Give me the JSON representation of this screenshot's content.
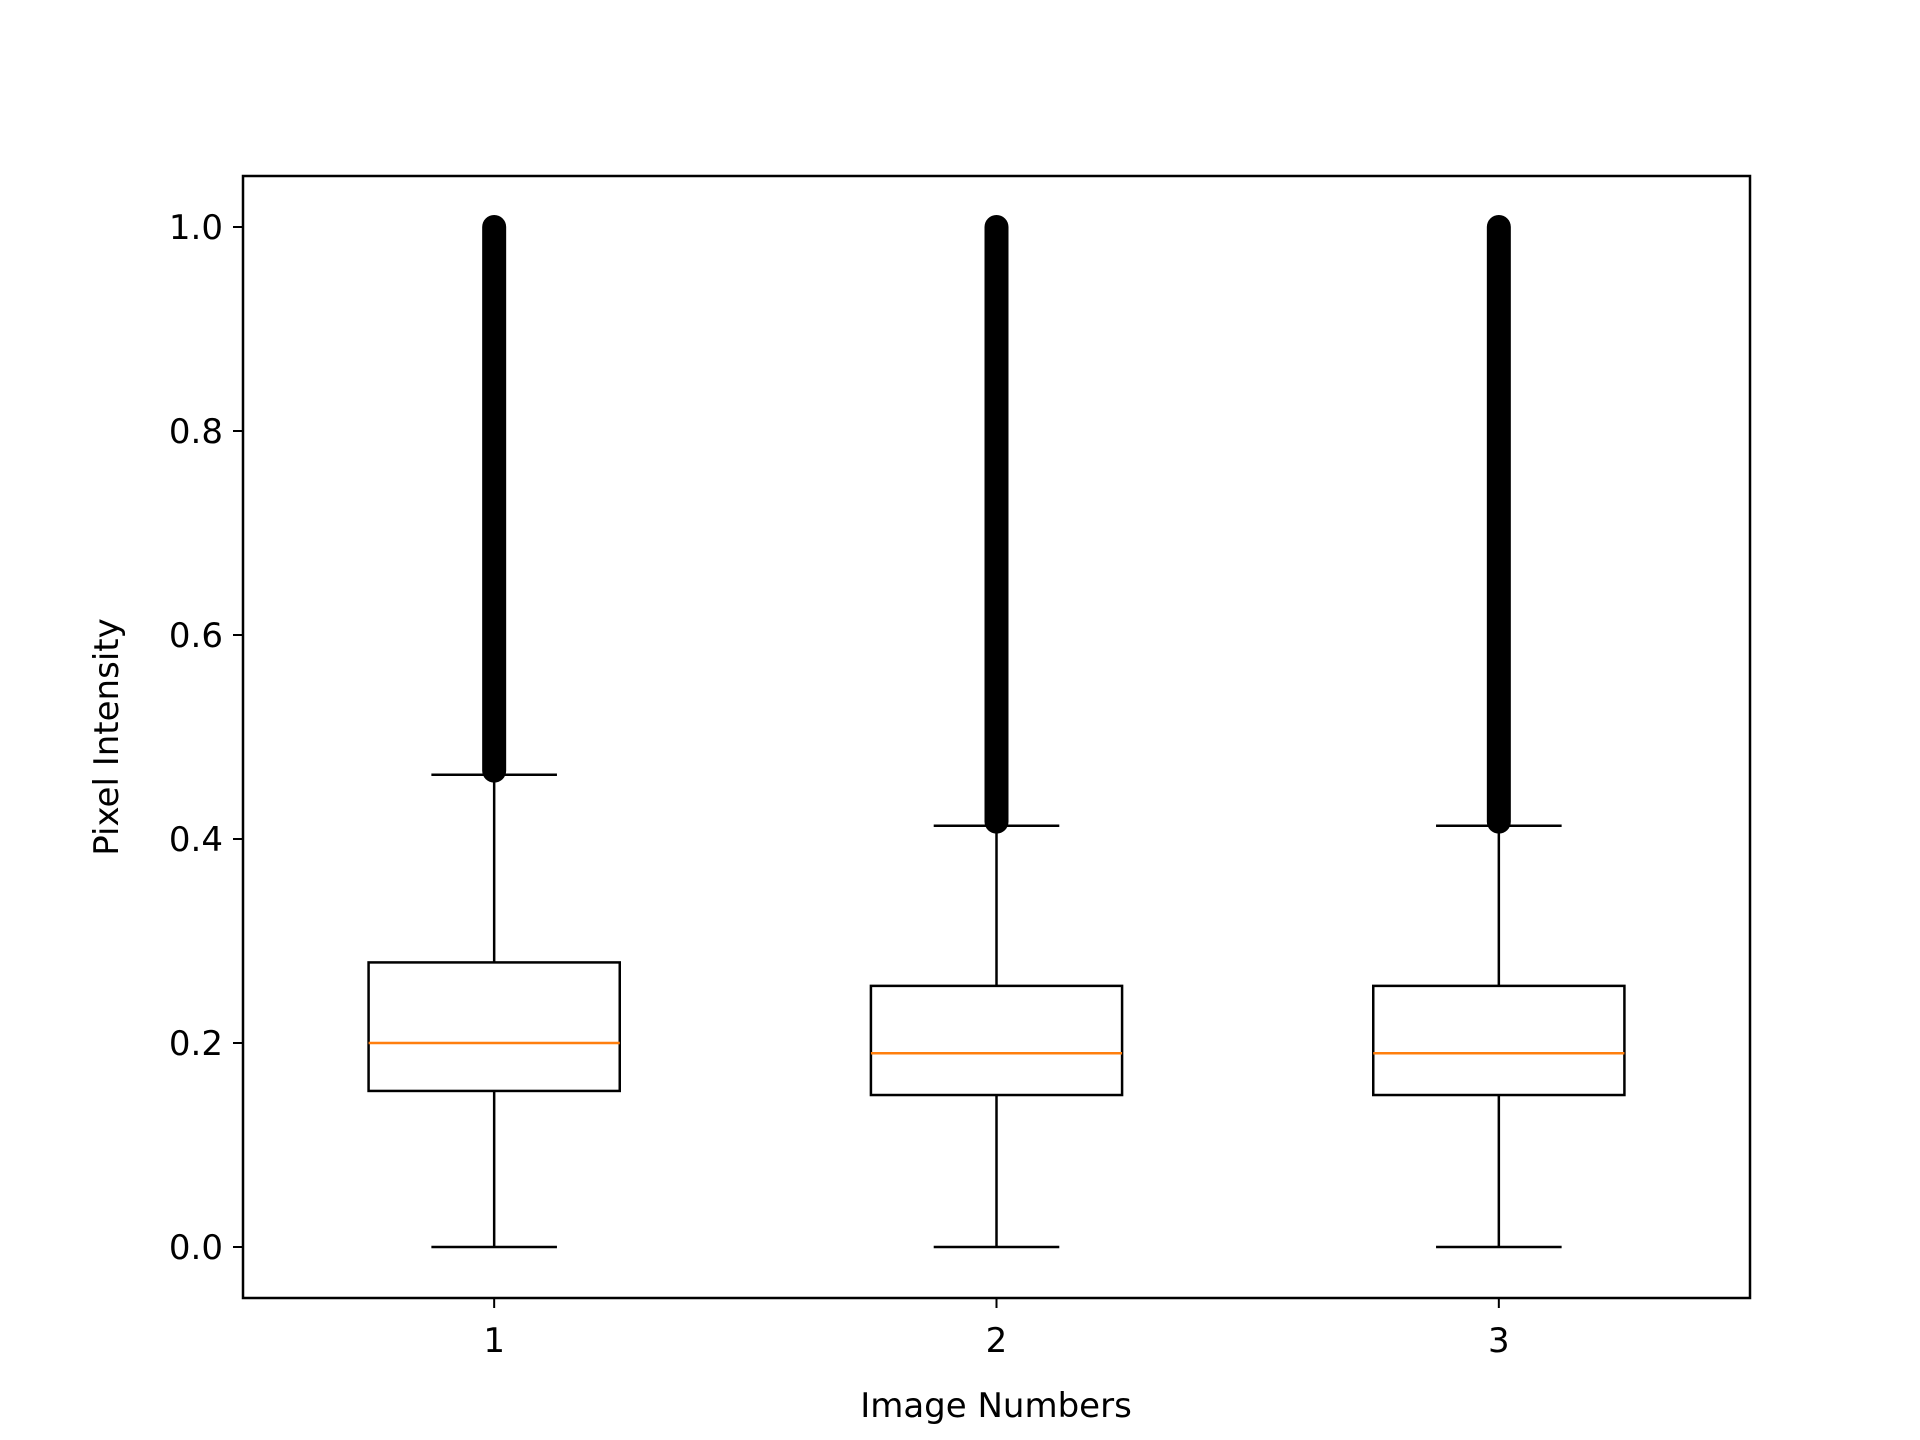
{
  "chart_data": {
    "type": "boxplot",
    "title": "",
    "xlabel": "Image Numbers",
    "ylabel": "Pixel Intensity",
    "categories": [
      "1",
      "2",
      "3"
    ],
    "ylim": [
      -0.05,
      1.05
    ],
    "yticks": [
      0.0,
      0.2,
      0.4,
      0.6,
      0.8,
      1.0
    ],
    "ytick_labels": [
      "0.0",
      "0.2",
      "0.4",
      "0.6",
      "0.8",
      "1.0"
    ],
    "grid": false,
    "boxes": [
      {
        "category": "1",
        "whisker_low": 0.0,
        "q1": 0.153,
        "median": 0.2,
        "q3": 0.279,
        "whisker_high": 0.463,
        "outliers_range": [
          0.467,
          1.0
        ]
      },
      {
        "category": "2",
        "whisker_low": 0.0,
        "q1": 0.149,
        "median": 0.19,
        "q3": 0.256,
        "whisker_high": 0.413,
        "outliers_range": [
          0.417,
          1.0
        ]
      },
      {
        "category": "3",
        "whisker_low": 0.0,
        "q1": 0.149,
        "median": 0.19,
        "q3": 0.256,
        "whisker_high": 0.413,
        "outliers_range": [
          0.417,
          1.0
        ]
      }
    ],
    "colors": {
      "box": "#000000",
      "median": "#ff7f0e",
      "flier": "#000000"
    }
  }
}
